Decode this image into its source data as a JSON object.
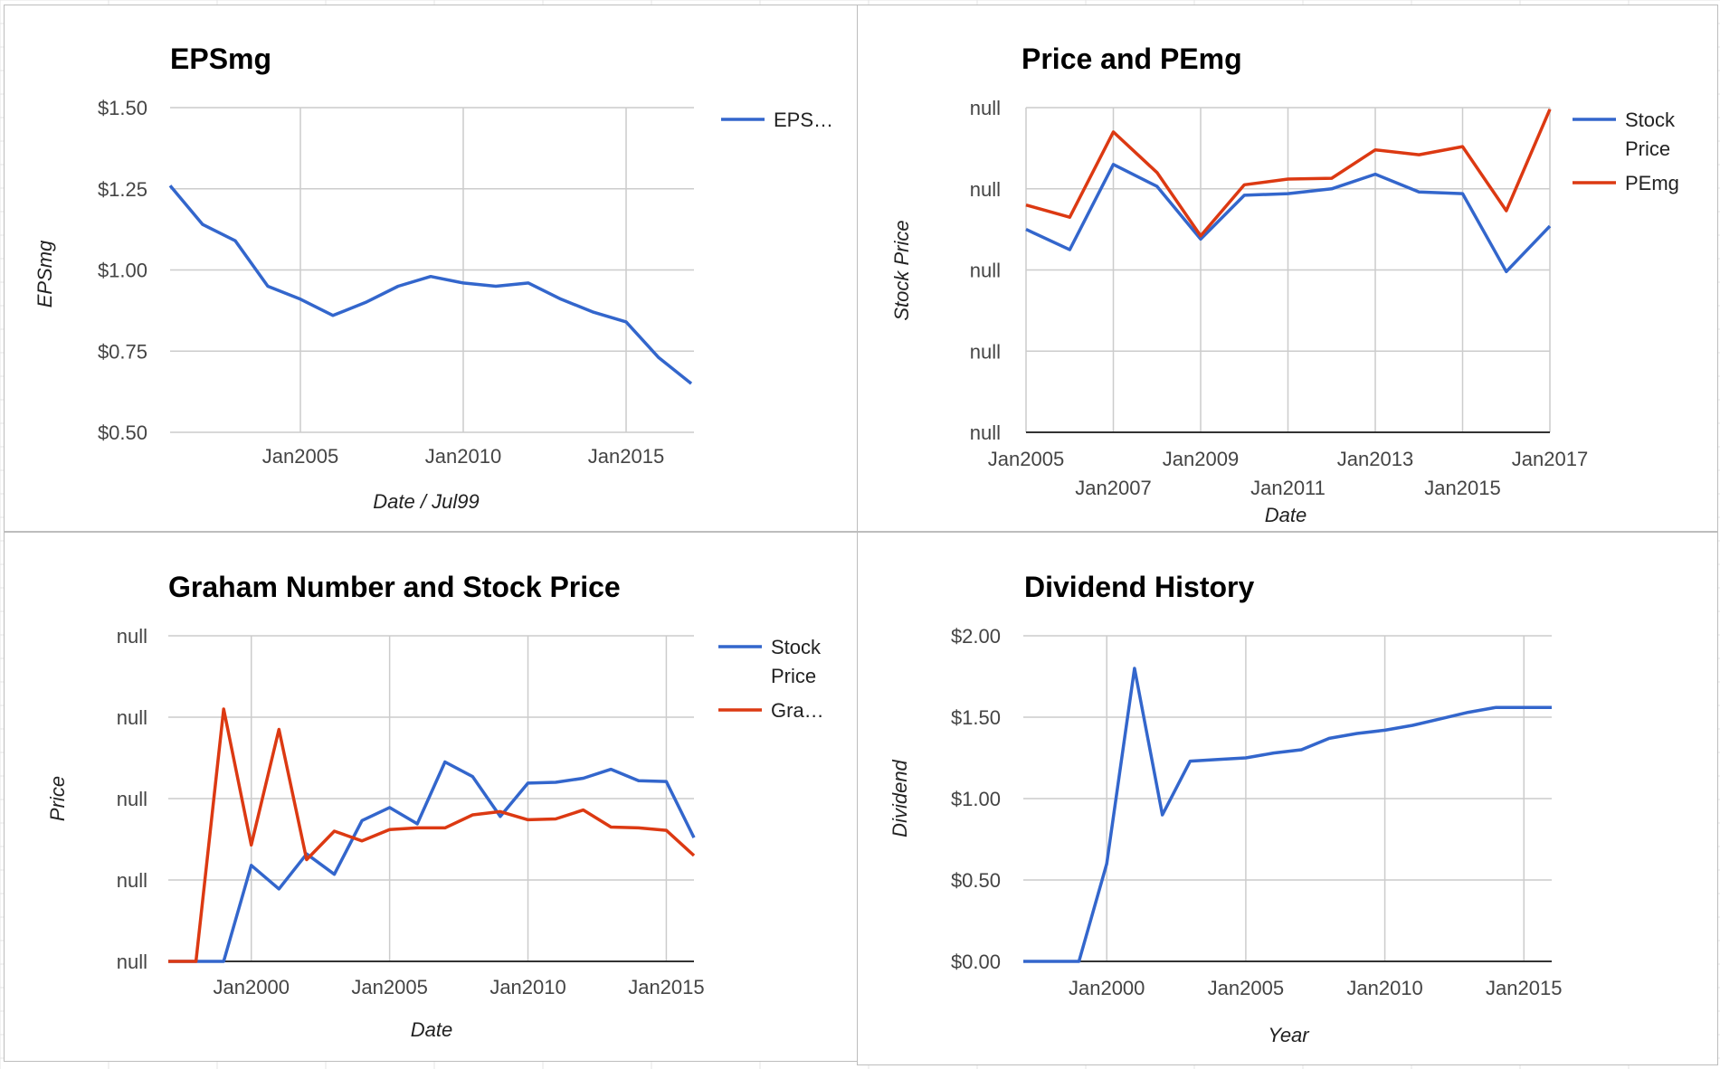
{
  "colors": {
    "blue": "#3366cc",
    "red": "#dc3912",
    "grid": "#cccccc",
    "baseline": "#333333"
  },
  "chart_data": [
    {
      "type": "line",
      "title": "EPSmg",
      "xlabel": "Date / Jul99",
      "ylabel": "EPSmg",
      "x_ticks": [
        "Jan2005",
        "Jan2010",
        "Jan2015"
      ],
      "y_ticks": [
        "$1.50",
        "$1.25",
        "$1.00",
        "$0.75",
        "$0.50"
      ],
      "ylim": [
        0.5,
        1.5
      ],
      "xlim": [
        "2001-01",
        "2017-02"
      ],
      "grid": true,
      "legend_position": "right",
      "series": [
        {
          "name": "EPS…",
          "color": "blue",
          "x": [
            "2001-01",
            "2002-01",
            "2003-01",
            "2004-01",
            "2005-01",
            "2006-01",
            "2007-01",
            "2008-01",
            "2009-01",
            "2010-01",
            "2011-01",
            "2012-01",
            "2013-01",
            "2014-01",
            "2015-01",
            "2016-01",
            "2017-01"
          ],
          "values": [
            1.26,
            1.14,
            1.09,
            0.95,
            0.91,
            0.86,
            0.9,
            0.95,
            0.98,
            0.96,
            0.95,
            0.96,
            0.91,
            0.87,
            0.84,
            0.73,
            0.65
          ]
        }
      ]
    },
    {
      "type": "line",
      "title": "Price and PEmg",
      "xlabel": "Date",
      "ylabel": "Stock Price",
      "x_ticks": [
        "Jan2005",
        "Jan2007",
        "Jan2009",
        "Jan2011",
        "Jan2013",
        "Jan2015",
        "Jan2017"
      ],
      "y_ticks": [
        "null",
        "null",
        "null",
        "null",
        "null"
      ],
      "ylim": [
        0,
        4
      ],
      "xlim": [
        "2005-01",
        "2017-01"
      ],
      "grid": true,
      "legend_position": "right",
      "series": [
        {
          "name": "Stock Price",
          "color": "blue",
          "x": [
            "2005-01",
            "2006-01",
            "2007-01",
            "2008-01",
            "2009-01",
            "2010-01",
            "2011-01",
            "2012-01",
            "2013-01",
            "2014-01",
            "2015-01",
            "2016-01",
            "2017-01"
          ],
          "values": [
            2.5,
            2.25,
            3.3,
            3.03,
            2.38,
            2.92,
            2.94,
            3.0,
            3.18,
            2.96,
            2.94,
            1.98,
            2.54
          ]
        },
        {
          "name": "PEmg",
          "color": "red",
          "x": [
            "2005-01",
            "2006-01",
            "2007-01",
            "2008-01",
            "2009-01",
            "2010-01",
            "2011-01",
            "2012-01",
            "2013-01",
            "2014-01",
            "2015-01",
            "2016-01",
            "2017-01"
          ],
          "values": [
            2.8,
            2.65,
            3.7,
            3.2,
            2.42,
            3.05,
            3.12,
            3.13,
            3.48,
            3.42,
            3.52,
            2.73,
            3.98
          ]
        }
      ]
    },
    {
      "type": "line",
      "title": "Graham Number and Stock Price",
      "xlabel": "Date",
      "ylabel": "Price",
      "x_ticks": [
        "Jan2000",
        "Jan2005",
        "Jan2010",
        "Jan2015"
      ],
      "y_ticks": [
        "null",
        "null",
        "null",
        "null",
        "null"
      ],
      "ylim": [
        0,
        4
      ],
      "xlim": [
        "1997-01",
        "2016-01"
      ],
      "grid": true,
      "legend_position": "right",
      "series": [
        {
          "name": "Stock Price",
          "color": "blue",
          "x": [
            "1997-01",
            "1998-01",
            "1999-01",
            "2000-01",
            "2001-01",
            "2002-01",
            "2003-01",
            "2004-01",
            "2005-01",
            "2006-01",
            "2007-01",
            "2008-01",
            "2009-01",
            "2010-01",
            "2011-01",
            "2012-01",
            "2013-01",
            "2014-01",
            "2015-01",
            "2016-01"
          ],
          "values": [
            0,
            0,
            0,
            1.18,
            0.89,
            1.32,
            1.07,
            1.73,
            1.89,
            1.69,
            2.45,
            2.27,
            1.78,
            2.19,
            2.2,
            2.25,
            2.36,
            2.22,
            2.21,
            1.52
          ]
        },
        {
          "name": "Gra…",
          "color": "red",
          "x": [
            "1997-01",
            "1998-01",
            "1999-01",
            "2000-01",
            "2001-01",
            "2002-01",
            "2003-01",
            "2004-01",
            "2005-01",
            "2006-01",
            "2007-01",
            "2008-01",
            "2009-01",
            "2010-01",
            "2011-01",
            "2012-01",
            "2013-01",
            "2014-01",
            "2015-01",
            "2016-01"
          ],
          "values": [
            0,
            0,
            3.1,
            1.43,
            2.85,
            1.25,
            1.6,
            1.48,
            1.62,
            1.64,
            1.64,
            1.8,
            1.84,
            1.74,
            1.75,
            1.86,
            1.65,
            1.64,
            1.61,
            1.3
          ]
        }
      ]
    },
    {
      "type": "line",
      "title": "Dividend History",
      "xlabel": "Year",
      "ylabel": "Dividend",
      "x_ticks": [
        "Jan2000",
        "Jan2005",
        "Jan2010",
        "Jan2015"
      ],
      "y_ticks": [
        "$2.00",
        "$1.50",
        "$1.00",
        "$0.50",
        "$0.00"
      ],
      "ylim": [
        0,
        2
      ],
      "xlim": [
        "1997-01",
        "2016-01"
      ],
      "grid": true,
      "legend_position": "none",
      "series": [
        {
          "color": "blue",
          "x": [
            "1997-01",
            "1998-01",
            "1999-01",
            "2000-01",
            "2001-01",
            "2002-01",
            "2003-01",
            "2004-01",
            "2005-01",
            "2006-01",
            "2007-01",
            "2008-01",
            "2009-01",
            "2010-01",
            "2011-01",
            "2012-01",
            "2013-01",
            "2014-01",
            "2015-01",
            "2016-01"
          ],
          "values": [
            0,
            0,
            0,
            0.6,
            1.8,
            0.9,
            1.23,
            1.24,
            1.25,
            1.28,
            1.3,
            1.37,
            1.4,
            1.42,
            1.45,
            1.49,
            1.53,
            1.56,
            1.56,
            1.56
          ]
        }
      ]
    }
  ]
}
